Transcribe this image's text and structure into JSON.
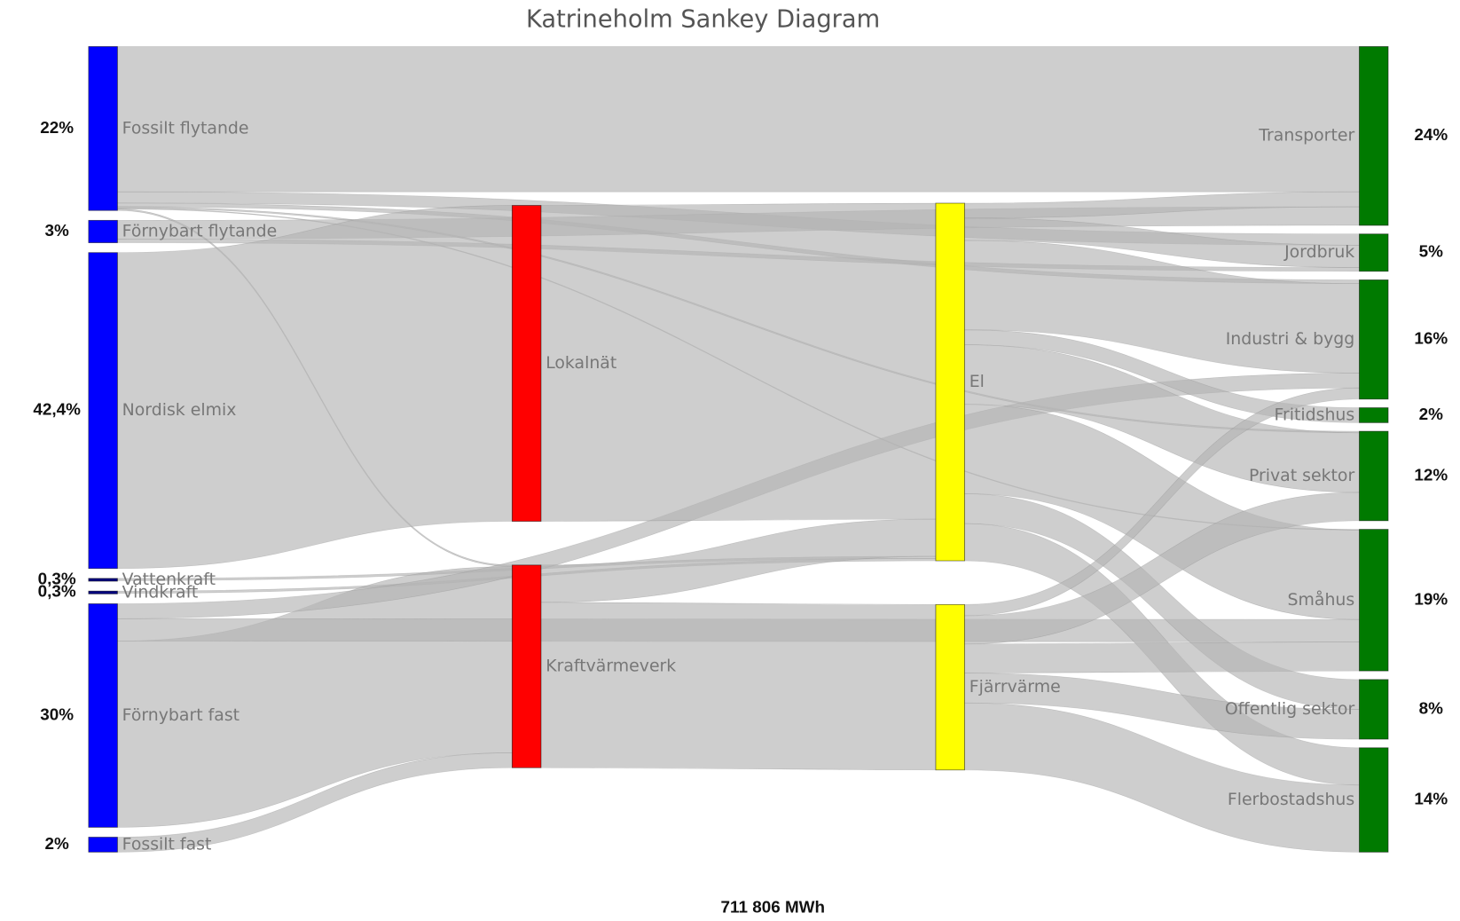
{
  "chart_data": {
    "type": "sankey",
    "title": "Katrineholm Sankey Diagram",
    "total_label": "711 806 MWh",
    "link_color": "#b4b4b4",
    "nodes": [
      {
        "name": "Fossilt flytande",
        "color": "#0000ff",
        "value": 22,
        "value_label": "22%"
      },
      {
        "name": "Förnybart flytande",
        "color": "#0000ff",
        "value": 3,
        "value_label": "3%"
      },
      {
        "name": "Nordisk elmix",
        "color": "#0000ff",
        "value": 42.4,
        "value_label": "42,4%"
      },
      {
        "name": "Vattenkraft",
        "color": "#000080",
        "value": 0.3,
        "value_label": "0,3%"
      },
      {
        "name": "Vindkraft",
        "color": "#000080",
        "value": 0.3,
        "value_label": "0,3%"
      },
      {
        "name": "Förnybart fast",
        "color": "#0000ff",
        "value": 30,
        "value_label": "30%"
      },
      {
        "name": "Fossilt fast",
        "color": "#0000ff",
        "value": 2,
        "value_label": "2%"
      },
      {
        "name": "Lokalnät",
        "color": "#ff0000"
      },
      {
        "name": "Kraftvärmeverk",
        "color": "#ff0000"
      },
      {
        "name": "El",
        "color": "#ffff00"
      },
      {
        "name": "Fjärrvärme",
        "color": "#ffff00"
      },
      {
        "name": "Transporter",
        "color": "#007a00",
        "value": 24,
        "value_label": "24%"
      },
      {
        "name": "Jordbruk",
        "color": "#007a00",
        "value": 5,
        "value_label": "5%"
      },
      {
        "name": "Industri & bygg",
        "color": "#007a00",
        "value": 16,
        "value_label": "16%"
      },
      {
        "name": "Fritidshus",
        "color": "#007a00",
        "value": 2,
        "value_label": "2%"
      },
      {
        "name": "Privat sektor",
        "color": "#007a00",
        "value": 12,
        "value_label": "12%"
      },
      {
        "name": "Småhus",
        "color": "#007a00",
        "value": 19,
        "value_label": "19%"
      },
      {
        "name": "Offentlig sektor",
        "color": "#007a00",
        "value": 8,
        "value_label": "8%"
      },
      {
        "name": "Flerbostadshus",
        "color": "#007a00",
        "value": 14,
        "value_label": "14%"
      }
    ],
    "links": [
      {
        "source": "Fossilt flytande",
        "target": "Transporter",
        "value": 19.5
      },
      {
        "source": "Fossilt flytande",
        "target": "Jordbruk",
        "value": 1.5
      },
      {
        "source": "Fossilt flytande",
        "target": "Industri & bygg",
        "value": 0.5
      },
      {
        "source": "Fossilt flytande",
        "target": "Privat sektor",
        "value": 0.2
      },
      {
        "source": "Fossilt flytande",
        "target": "Småhus",
        "value": 0.1
      },
      {
        "source": "Fossilt flytande",
        "target": "Kraftvärmeverk",
        "value": 0.2
      },
      {
        "source": "Förnybart flytande",
        "target": "Transporter",
        "value": 2.5
      },
      {
        "source": "Förnybart flytande",
        "target": "Jordbruk",
        "value": 0.5
      },
      {
        "source": "Nordisk elmix",
        "target": "Lokalnät",
        "value": 42.4
      },
      {
        "source": "Vattenkraft",
        "target": "El",
        "value": 0.3
      },
      {
        "source": "Vindkraft",
        "target": "El",
        "value": 0.3
      },
      {
        "source": "Förnybart fast",
        "target": "Kraftvärmeverk",
        "value": 25
      },
      {
        "source": "Förnybart fast",
        "target": "Småhus",
        "value": 3
      },
      {
        "source": "Förnybart fast",
        "target": "Industri & bygg",
        "value": 2
      },
      {
        "source": "Fossilt fast",
        "target": "Kraftvärmeverk",
        "value": 2
      },
      {
        "source": "Lokalnät",
        "target": "El",
        "value": 42.4
      },
      {
        "source": "Kraftvärmeverk",
        "target": "El",
        "value": 5
      },
      {
        "source": "Kraftvärmeverk",
        "target": "Fjärrvärme",
        "value": 22.2
      },
      {
        "source": "El",
        "target": "Transporter",
        "value": 2
      },
      {
        "source": "El",
        "target": "Jordbruk",
        "value": 3
      },
      {
        "source": "El",
        "target": "Industri & bygg",
        "value": 12
      },
      {
        "source": "El",
        "target": "Fritidshus",
        "value": 2
      },
      {
        "source": "El",
        "target": "Privat sektor",
        "value": 8
      },
      {
        "source": "El",
        "target": "Småhus",
        "value": 12
      },
      {
        "source": "El",
        "target": "Offentlig sektor",
        "value": 4
      },
      {
        "source": "El",
        "target": "Flerbostadshus",
        "value": 5
      },
      {
        "source": "Fjärrvärme",
        "target": "Industri & bygg",
        "value": 1.5
      },
      {
        "source": "Fjärrvärme",
        "target": "Privat sektor",
        "value": 3.8
      },
      {
        "source": "Fjärrvärme",
        "target": "Småhus",
        "value": 3.9
      },
      {
        "source": "Fjärrvärme",
        "target": "Offentlig sektor",
        "value": 4
      },
      {
        "source": "Fjärrvärme",
        "target": "Flerbostadshus",
        "value": 9
      }
    ]
  }
}
